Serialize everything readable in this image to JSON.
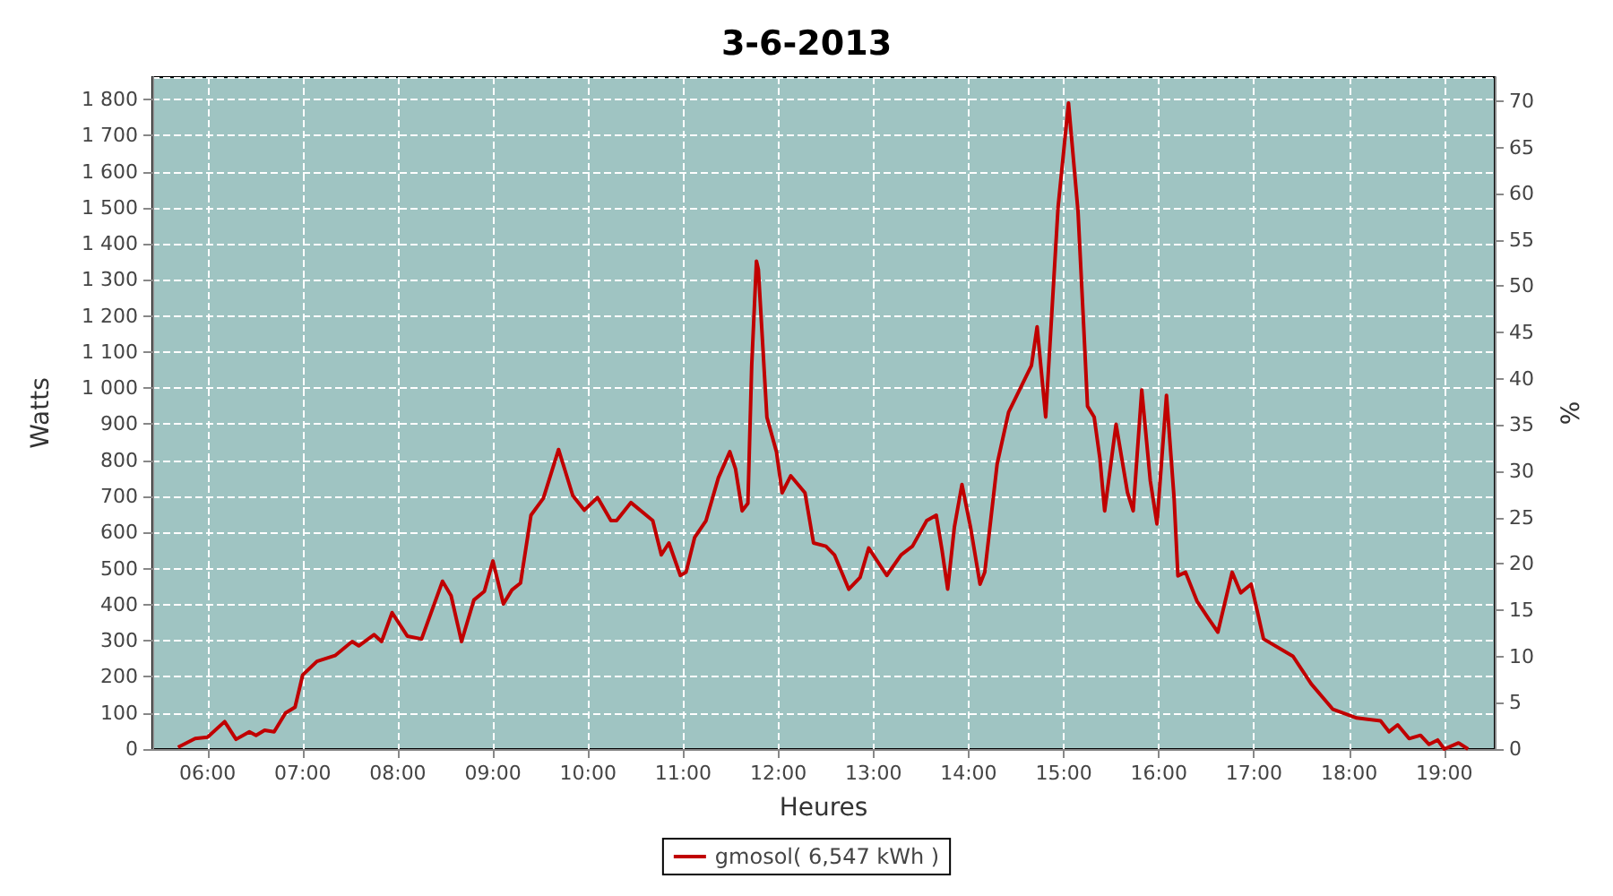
{
  "chart_data": {
    "type": "line",
    "title": "3-6-2013",
    "xlabel": "Heures",
    "ylabel": "Watts",
    "y2label": "%",
    "xlim": [
      5.42,
      19.53
    ],
    "xticks": [
      {
        "value": 6,
        "label": "06:00"
      },
      {
        "value": 7,
        "label": "07:00"
      },
      {
        "value": 8,
        "label": "08:00"
      },
      {
        "value": 9,
        "label": "09:00"
      },
      {
        "value": 10,
        "label": "10:00"
      },
      {
        "value": 11,
        "label": "11:00"
      },
      {
        "value": 12,
        "label": "12:00"
      },
      {
        "value": 13,
        "label": "13:00"
      },
      {
        "value": 14,
        "label": "14:00"
      },
      {
        "value": 15,
        "label": "15:00"
      },
      {
        "value": 16,
        "label": "16:00"
      },
      {
        "value": 17,
        "label": "17:00"
      },
      {
        "value": 18,
        "label": "18:00"
      },
      {
        "value": 19,
        "label": "19:00"
      }
    ],
    "ylim": [
      0,
      1862
    ],
    "yticks": [
      0,
      100,
      200,
      300,
      400,
      500,
      600,
      700,
      800,
      900,
      {
        "value": 1000,
        "label": "1 000"
      },
      {
        "value": 1100,
        "label": "1 100"
      },
      {
        "value": 1200,
        "label": "1 200"
      },
      {
        "value": 1300,
        "label": "1 300"
      },
      {
        "value": 1400,
        "label": "1 400"
      },
      {
        "value": 1500,
        "label": "1 500"
      },
      {
        "value": 1600,
        "label": "1 600"
      },
      {
        "value": 1700,
        "label": "1 700"
      },
      {
        "value": 1800,
        "label": "1 800"
      }
    ],
    "y2lim": [
      0,
      72.6
    ],
    "y2ticks": [
      0,
      5,
      10,
      15,
      20,
      25,
      30,
      35,
      40,
      45,
      50,
      55,
      60,
      65,
      70
    ],
    "grid": true,
    "legend": "bottom",
    "marker": "none",
    "line_style": "solid",
    "series": [
      {
        "name": "gmosol( 6,547 kWh )",
        "color": "#c00000",
        "x": [
          5.69,
          5.87,
          6.0,
          6.18,
          6.3,
          6.44,
          6.51,
          6.6,
          6.7,
          6.82,
          6.92,
          7.0,
          7.15,
          7.34,
          7.52,
          7.59,
          7.75,
          7.83,
          7.94,
          8.1,
          8.25,
          8.47,
          8.56,
          8.67,
          8.8,
          8.91,
          9.0,
          9.11,
          9.2,
          9.29,
          9.4,
          9.53,
          9.69,
          9.84,
          9.96,
          10.1,
          10.24,
          10.3,
          10.45,
          10.68,
          10.77,
          10.85,
          10.97,
          11.03,
          11.12,
          11.24,
          11.37,
          11.49,
          11.55,
          11.62,
          11.68,
          11.72,
          11.77,
          11.79,
          11.88,
          11.98,
          12.04,
          12.13,
          12.28,
          12.37,
          12.5,
          12.59,
          12.74,
          12.86,
          12.95,
          13.14,
          13.29,
          13.41,
          13.56,
          13.66,
          13.72,
          13.78,
          13.85,
          13.93,
          14.02,
          14.12,
          14.17,
          14.3,
          14.42,
          14.66,
          14.72,
          14.81,
          14.94,
          15.05,
          15.15,
          15.21,
          15.25,
          15.32,
          15.38,
          15.43,
          15.55,
          15.67,
          15.73,
          15.82,
          15.91,
          15.98,
          16.08,
          16.16,
          16.2,
          16.28,
          16.4,
          16.52,
          16.62,
          16.77,
          16.86,
          16.97,
          17.1,
          17.41,
          17.6,
          17.83,
          18.08,
          18.33,
          18.42,
          18.51,
          18.63,
          18.75,
          18.84,
          18.93,
          19.0,
          19.15,
          19.25
        ],
        "values": [
          5,
          29,
          33,
          76,
          27,
          48,
          38,
          52,
          48,
          100,
          116,
          205,
          243,
          259,
          298,
          286,
          317,
          298,
          378,
          313,
          305,
          465,
          425,
          298,
          413,
          437,
          521,
          402,
          441,
          460,
          648,
          695,
          830,
          702,
          662,
          697,
          633,
          633,
          683,
          633,
          538,
          571,
          481,
          490,
          586,
          633,
          752,
          824,
          776,
          660,
          681,
          1062,
          1352,
          1329,
          919,
          824,
          710,
          757,
          710,
          571,
          562,
          538,
          443,
          476,
          557,
          481,
          538,
          562,
          633,
          648,
          552,
          443,
          614,
          733,
          615,
          457,
          490,
          790,
          933,
          1062,
          1170,
          920,
          1500,
          1790,
          1490,
          1170,
          950,
          920,
          805,
          660,
          900,
          711,
          660,
          995,
          743,
          624,
          980,
          695,
          480,
          490,
          410,
          362,
          324,
          490,
          433,
          457,
          305,
          257,
          181,
          110,
          86,
          78,
          48,
          67,
          29,
          38,
          13,
          25,
          0,
          17,
          0
        ]
      }
    ]
  }
}
